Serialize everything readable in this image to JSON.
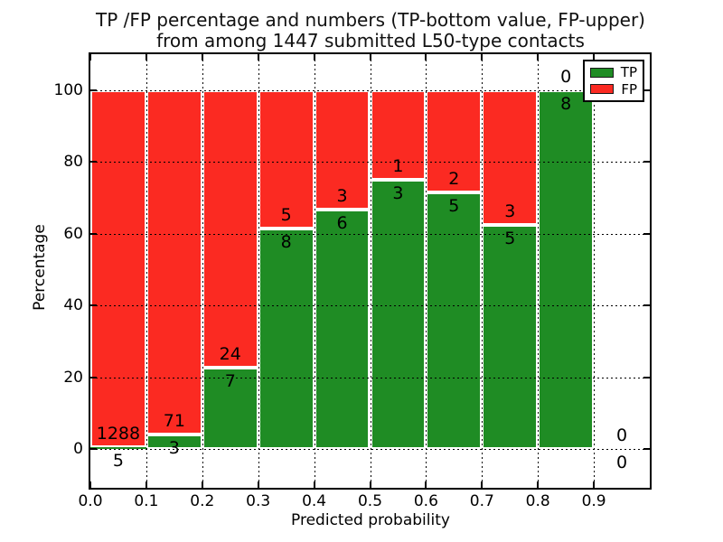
{
  "chart_data": {
    "type": "bar",
    "variant": "stacked-percentage-histogram",
    "title_line1": "TP /FP percentage and numbers (TP-bottom value, FP-upper)",
    "title_line2": "from among 1447 submitted L50-type contacts",
    "xlabel": "Predicted probability",
    "ylabel": "Percentage",
    "xlim": [
      0.0,
      1.0
    ],
    "ylim": [
      -11,
      110
    ],
    "xticks": [
      "0.0",
      "0.1",
      "0.2",
      "0.3",
      "0.4",
      "0.5",
      "0.6",
      "0.7",
      "0.8",
      "0.9"
    ],
    "yticks": [
      "0",
      "20",
      "40",
      "60",
      "80",
      "100"
    ],
    "grid": "dotted black gridlines on both axes, drawn above bars",
    "legend": {
      "position": "upper-right",
      "entries": [
        {
          "label": "TP",
          "color": "#1f8c24"
        },
        {
          "label": "FP",
          "color": "#fb2a22"
        }
      ]
    },
    "colors": {
      "tp": "#1f8c24",
      "fp": "#fb2a22",
      "bar_edge": "#ffffff"
    },
    "annotation_rule": "FP count printed above the TP/FP boundary, TP count printed below it, at each bin center",
    "bins": [
      {
        "x_start": 0.0,
        "x_end": 0.1,
        "tp": 5,
        "fp": 1288,
        "tp_pct": 0.39
      },
      {
        "x_start": 0.1,
        "x_end": 0.2,
        "tp": 3,
        "fp": 71,
        "tp_pct": 4.05
      },
      {
        "x_start": 0.2,
        "x_end": 0.3,
        "tp": 7,
        "fp": 24,
        "tp_pct": 22.58
      },
      {
        "x_start": 0.3,
        "x_end": 0.4,
        "tp": 8,
        "fp": 5,
        "tp_pct": 61.54
      },
      {
        "x_start": 0.4,
        "x_end": 0.5,
        "tp": 6,
        "fp": 3,
        "tp_pct": 66.67
      },
      {
        "x_start": 0.5,
        "x_end": 0.6,
        "tp": 3,
        "fp": 1,
        "tp_pct": 75.0
      },
      {
        "x_start": 0.6,
        "x_end": 0.7,
        "tp": 5,
        "fp": 2,
        "tp_pct": 71.43
      },
      {
        "x_start": 0.7,
        "x_end": 0.8,
        "tp": 5,
        "fp": 3,
        "tp_pct": 62.5
      },
      {
        "x_start": 0.8,
        "x_end": 0.9,
        "tp": 8,
        "fp": 0,
        "tp_pct": 100.0
      },
      {
        "x_start": 0.9,
        "x_end": 1.0,
        "tp": 0,
        "fp": 0,
        "tp_pct": 0.0
      }
    ],
    "total_submitted_contacts": "1447"
  }
}
